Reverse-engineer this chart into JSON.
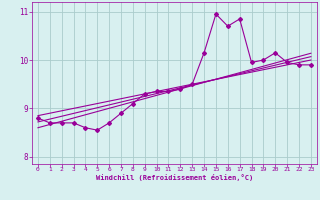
{
  "xlabel": "Windchill (Refroidissement éolien,°C)",
  "ylabel": "",
  "background_color": "#d8f0f0",
  "line_color": "#990099",
  "grid_color": "#aacccc",
  "tick_label_color": "#990099",
  "hours": [
    0,
    1,
    2,
    3,
    4,
    5,
    6,
    7,
    8,
    9,
    10,
    11,
    12,
    13,
    14,
    15,
    16,
    17,
    18,
    19,
    20,
    21,
    22,
    23
  ],
  "windchill": [
    8.8,
    8.7,
    8.7,
    8.7,
    8.6,
    8.55,
    8.7,
    8.9,
    9.1,
    9.3,
    9.35,
    9.35,
    9.4,
    9.5,
    10.15,
    10.95,
    10.7,
    10.85,
    9.95,
    10.0,
    10.15,
    9.95,
    9.9,
    9.9
  ],
  "regression_lines": [
    {
      "x0": 0,
      "y0": 8.85,
      "x1": 23,
      "y1": 10.0
    },
    {
      "x0": 0,
      "y0": 8.72,
      "x1": 23,
      "y1": 10.07
    },
    {
      "x0": 0,
      "y0": 8.6,
      "x1": 23,
      "y1": 10.14
    }
  ],
  "xlim": [
    -0.5,
    23.5
  ],
  "ylim": [
    7.85,
    11.2
  ],
  "yticks": [
    8,
    9,
    10,
    11
  ],
  "xticks": [
    0,
    1,
    2,
    3,
    4,
    5,
    6,
    7,
    8,
    9,
    10,
    11,
    12,
    13,
    14,
    15,
    16,
    17,
    18,
    19,
    20,
    21,
    22,
    23
  ],
  "figwidth": 3.2,
  "figheight": 2.0,
  "dpi": 100
}
